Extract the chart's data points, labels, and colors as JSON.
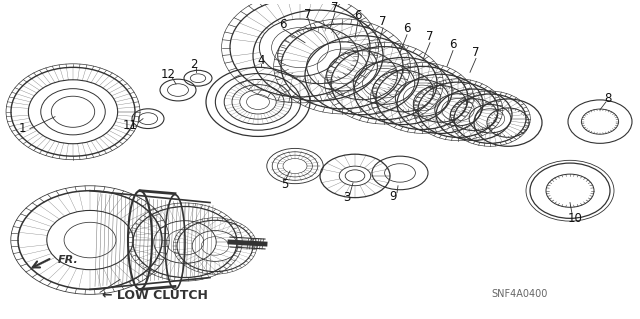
{
  "background_color": "#ffffff",
  "line_color": "#333333",
  "label_color": "#111111",
  "code": "SNF4A0400",
  "bottom_label": "LOW CLUTCH",
  "fr_text": "FR."
}
